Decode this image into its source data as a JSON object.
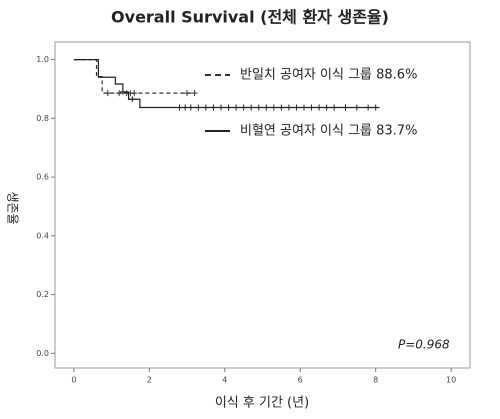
{
  "chart_data": {
    "type": "line",
    "step": true,
    "title": "Overall Survival (전체 환자 생존율)",
    "x_label": "이식 후 기간 (년)",
    "y_label": "생존율",
    "annotation": "P=0.968",
    "xlim": [
      -0.5,
      10.5
    ],
    "xticks": [
      0,
      2,
      4,
      6,
      8,
      10
    ],
    "ylim": [
      -0.05,
      1.06
    ],
    "yticks": [
      {
        "value": 0,
        "label": "0.0"
      },
      0.2,
      0.4,
      0.6,
      0.8,
      {
        "value": 1,
        "label": "1.0"
      }
    ],
    "series": [
      {
        "name": "반일치 공여자 이식 그룹 88.6%",
        "color": "#333333",
        "dash": true,
        "x": [
          0,
          0.6,
          0.75,
          3.2
        ],
        "values": [
          1.0,
          0.942,
          0.886,
          0.886
        ],
        "censored": [
          0.9,
          1.2,
          1.4,
          1.5,
          1.6,
          3.0,
          3.2
        ]
      },
      {
        "name": "비혈연 공여자 이식 그룹 83.7%",
        "color": "#222222",
        "dash": false,
        "x": [
          0,
          0.65,
          1.1,
          1.3,
          1.45,
          1.75,
          8.1
        ],
        "values": [
          1.0,
          0.94,
          0.917,
          0.89,
          0.865,
          0.837,
          0.837
        ],
        "censored": [
          1.3,
          1.55,
          2.8,
          2.95,
          3.1,
          3.3,
          3.5,
          3.7,
          3.9,
          4.1,
          4.3,
          4.5,
          4.7,
          4.9,
          5.1,
          5.3,
          5.5,
          5.7,
          5.9,
          6.1,
          6.3,
          6.5,
          6.7,
          6.9,
          7.2,
          7.5,
          7.8,
          8.0
        ]
      }
    ]
  }
}
